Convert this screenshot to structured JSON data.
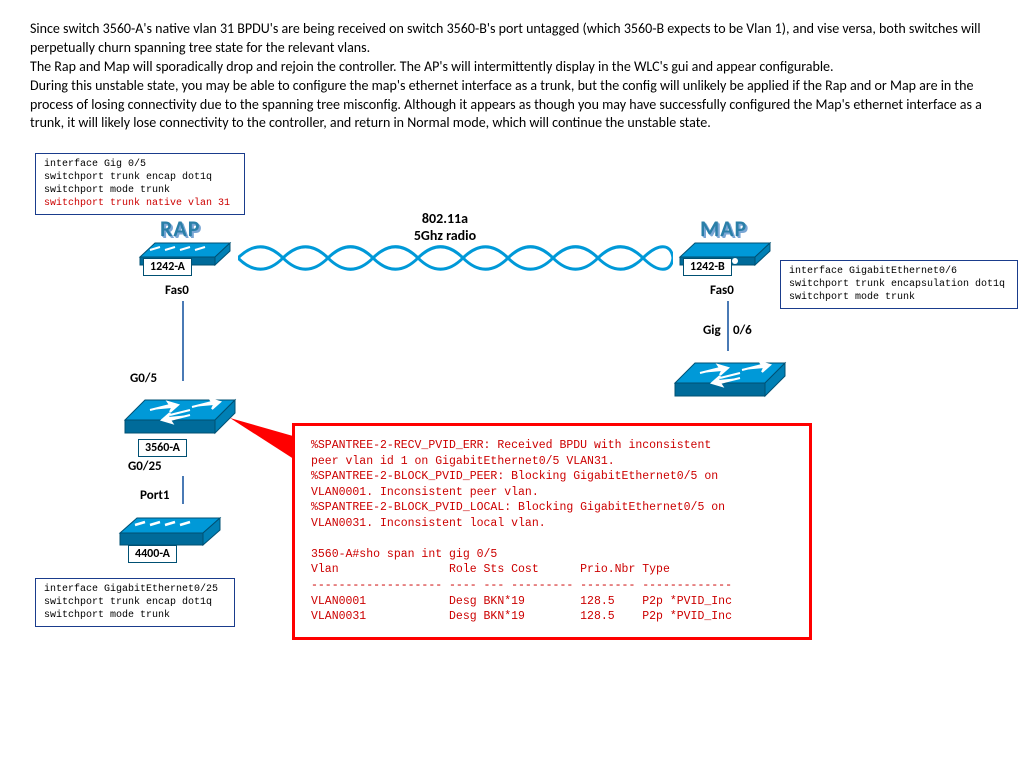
{
  "description": "Since switch 3560-A's native vlan 31 BPDU's are being received on switch 3560-B's port untagged (which 3560-B expects to be Vlan 1), and vise versa, both switches will perpetually churn spanning tree state for the relevant vlans.\nThe Rap and Map will sporadically drop and rejoin the controller.  The AP's will intermittently display in the WLC's gui and appear configurable.\nDuring this unstable state, you may be able to configure the map's ethernet interface as a trunk, but the config will unlikely be applied if the Rap and or Map are in the process of losing connectivity due to the spanning tree misconfig.  Although it appears as though you may have successfully configured the Map's ethernet interface as a trunk, it will likely lose connectivity to the controller, and return in Normal mode, which will continue the unstable state.",
  "colors": {
    "cisco_blue": "#0099d8",
    "cisco_dark": "#006b9a",
    "border_blue": "#1a3c8c",
    "link": "#4a7ab5",
    "error_red": "#ff0000",
    "text_red": "#cc0000"
  },
  "config_boxes": {
    "top_left": {
      "lines": [
        "interface Gig 0/5",
        " switchport trunk encap dot1q",
        " switchport mode trunk"
      ],
      "highlight_line": "switchport trunk native vlan 31"
    },
    "right": {
      "lines": [
        "interface GigabitEthernet0/6",
        "switchport trunk encapsulation dot1q",
        " switchport mode trunk"
      ]
    },
    "bottom_left": {
      "lines": [
        "interface GigabitEthernet0/25",
        "switchport trunk encap dot1q",
        "switchport mode trunk"
      ]
    }
  },
  "labels": {
    "rap": "RAP",
    "map": "MAP",
    "rap_id": "1242-A",
    "map_id": "1242-B",
    "switch_a": "3560-A",
    "wlc": "4400-A",
    "fas0_left": "Fas0",
    "fas0_right": "Fas0",
    "g05": "G0/5",
    "g025": "G0/25",
    "port1": "Port1",
    "gig06": "Gig 0/6",
    "radio_line1": "802.11a",
    "radio_line2": "5Ghz radio"
  },
  "error_output": "%SPANTREE-2-RECV_PVID_ERR: Received BPDU with inconsistent\npeer vlan id 1 on GigabitEthernet0/5 VLAN31.\n%SPANTREE-2-BLOCK_PVID_PEER: Blocking GigabitEthernet0/5 on\nVLAN0001. Inconsistent peer vlan.\n%SPANTREE-2-BLOCK_PVID_LOCAL: Blocking GigabitEthernet0/5 on\nVLAN0031. Inconsistent local vlan.\n\n3560-A#sho span int gig 0/5\nVlan                Role Sts Cost      Prio.Nbr Type\n------------------- ---- --- --------- -------- -------------\nVLAN0001            Desg BKN*19        128.5    P2p *PVID_Inc\nVLAN0031            Desg BKN*19        128.5    P2p *PVID_Inc"
}
